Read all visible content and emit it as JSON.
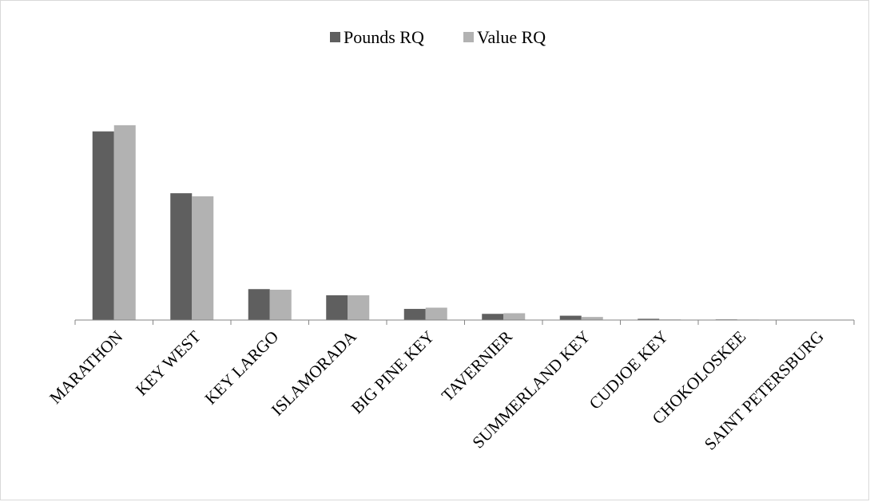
{
  "colors": {
    "pounds": "#5f5f5f",
    "value": "#b2b2b2",
    "axis": "#868686",
    "background": "#ffffff"
  },
  "chart_data": {
    "type": "bar",
    "title": "",
    "xlabel": "",
    "ylabel": "",
    "y_axis_labels_shown": false,
    "grid": false,
    "legend_position": "top",
    "ylim": [
      0,
      0.32
    ],
    "categories": [
      "MARATHON",
      "KEY WEST",
      "KEY LARGO",
      "ISLAMORADA",
      "BIG PINE KEY",
      "TAVERNIER",
      "SUMMERLAND KEY",
      "CUDJOE KEY",
      "CHOKOLOSKEE",
      "SAINT PETERSBURG"
    ],
    "series": [
      {
        "name": "Pounds RQ",
        "color": "#5f5f5f",
        "values": [
          0.305,
          0.205,
          0.05,
          0.04,
          0.018,
          0.01,
          0.007,
          0.002,
          0.001,
          0.0
        ]
      },
      {
        "name": "Value RQ",
        "color": "#b2b2b2",
        "values": [
          0.315,
          0.2,
          0.049,
          0.04,
          0.02,
          0.011,
          0.005,
          0.001,
          0.0008,
          0.0
        ]
      }
    ]
  }
}
